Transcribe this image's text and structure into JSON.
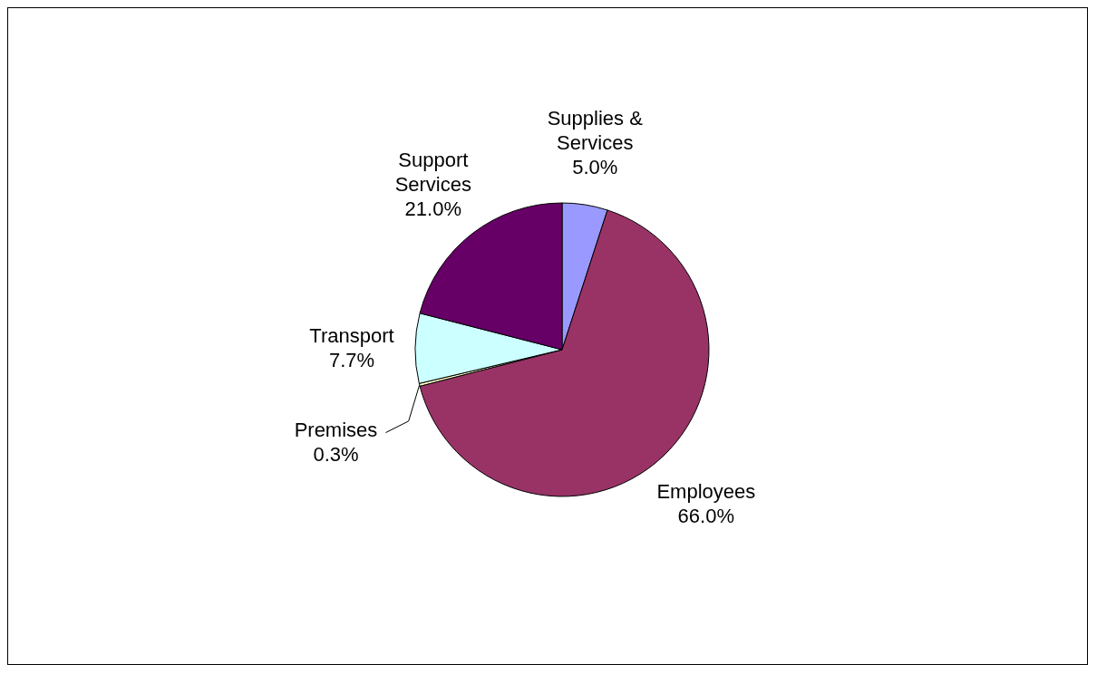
{
  "chart_data": {
    "type": "pie",
    "categories": [
      "Supplies & Services",
      "Employees",
      "Premises",
      "Transport",
      "Support Services"
    ],
    "values": [
      5.0,
      66.0,
      0.3,
      7.7,
      21.0
    ],
    "value_labels": [
      "5.0%",
      "66.0%",
      "0.3%",
      "7.7%",
      "21.0%"
    ],
    "colors": [
      "#9999ff",
      "#993366",
      "#ffffcc",
      "#ccffff",
      "#660066"
    ],
    "legend": false
  }
}
